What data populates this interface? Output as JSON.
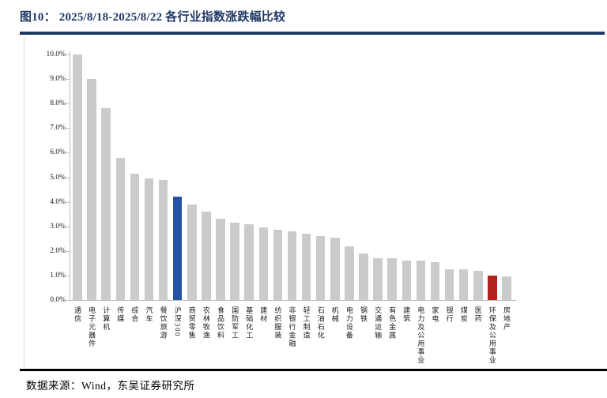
{
  "header": {
    "title": "图10：  2025/8/18-2025/8/22 各行业指数涨跌幅比较",
    "title_color": "#1f3864"
  },
  "footer": {
    "source": "数据来源：Wind，东吴证券研究所"
  },
  "chart_data": {
    "type": "bar",
    "title": "2025/8/18-2025/8/22 各行业指数涨跌幅比较",
    "categories": [
      "通信",
      "电子元器件",
      "计算机",
      "传媒",
      "综合",
      "汽车",
      "餐饮旅游",
      "沪深300",
      "商贸零售",
      "农林牧渔",
      "食品饮料",
      "国防军工",
      "基础化工",
      "建材",
      "纺织服装",
      "非银行金融",
      "轻工制造",
      "石油石化",
      "机械",
      "电力设备",
      "钢铁",
      "交通运输",
      "有色金属",
      "建筑",
      "电力及公用事业",
      "家电",
      "银行",
      "煤炭",
      "医药",
      "环保及公用事业",
      "房地产"
    ],
    "values": [
      10.0,
      9.0,
      7.8,
      5.8,
      5.15,
      4.95,
      4.9,
      4.2,
      3.9,
      3.6,
      3.3,
      3.15,
      3.1,
      2.95,
      2.85,
      2.8,
      2.7,
      2.6,
      2.55,
      2.2,
      1.9,
      1.7,
      1.7,
      1.6,
      1.6,
      1.55,
      1.25,
      1.25,
      1.2,
      1.0,
      0.95
    ],
    "unit": "%",
    "xlabel": "",
    "ylabel": "",
    "ylim": [
      0,
      10
    ],
    "y_tick_step": 1.0,
    "y_ticks": [
      "0.0%",
      "1.0%",
      "2.0%",
      "3.0%",
      "4.0%",
      "5.0%",
      "6.0%",
      "7.0%",
      "8.0%",
      "9.0%",
      "10.0%"
    ],
    "grid": false,
    "legend": "none",
    "bar_color_default": "#cbcbcb",
    "highlights": [
      {
        "category": "沪深300",
        "color": "#2452a4"
      },
      {
        "category": "环保及公用事业",
        "color": "#b2241e"
      }
    ],
    "axis_color": "#bfbfbf"
  }
}
